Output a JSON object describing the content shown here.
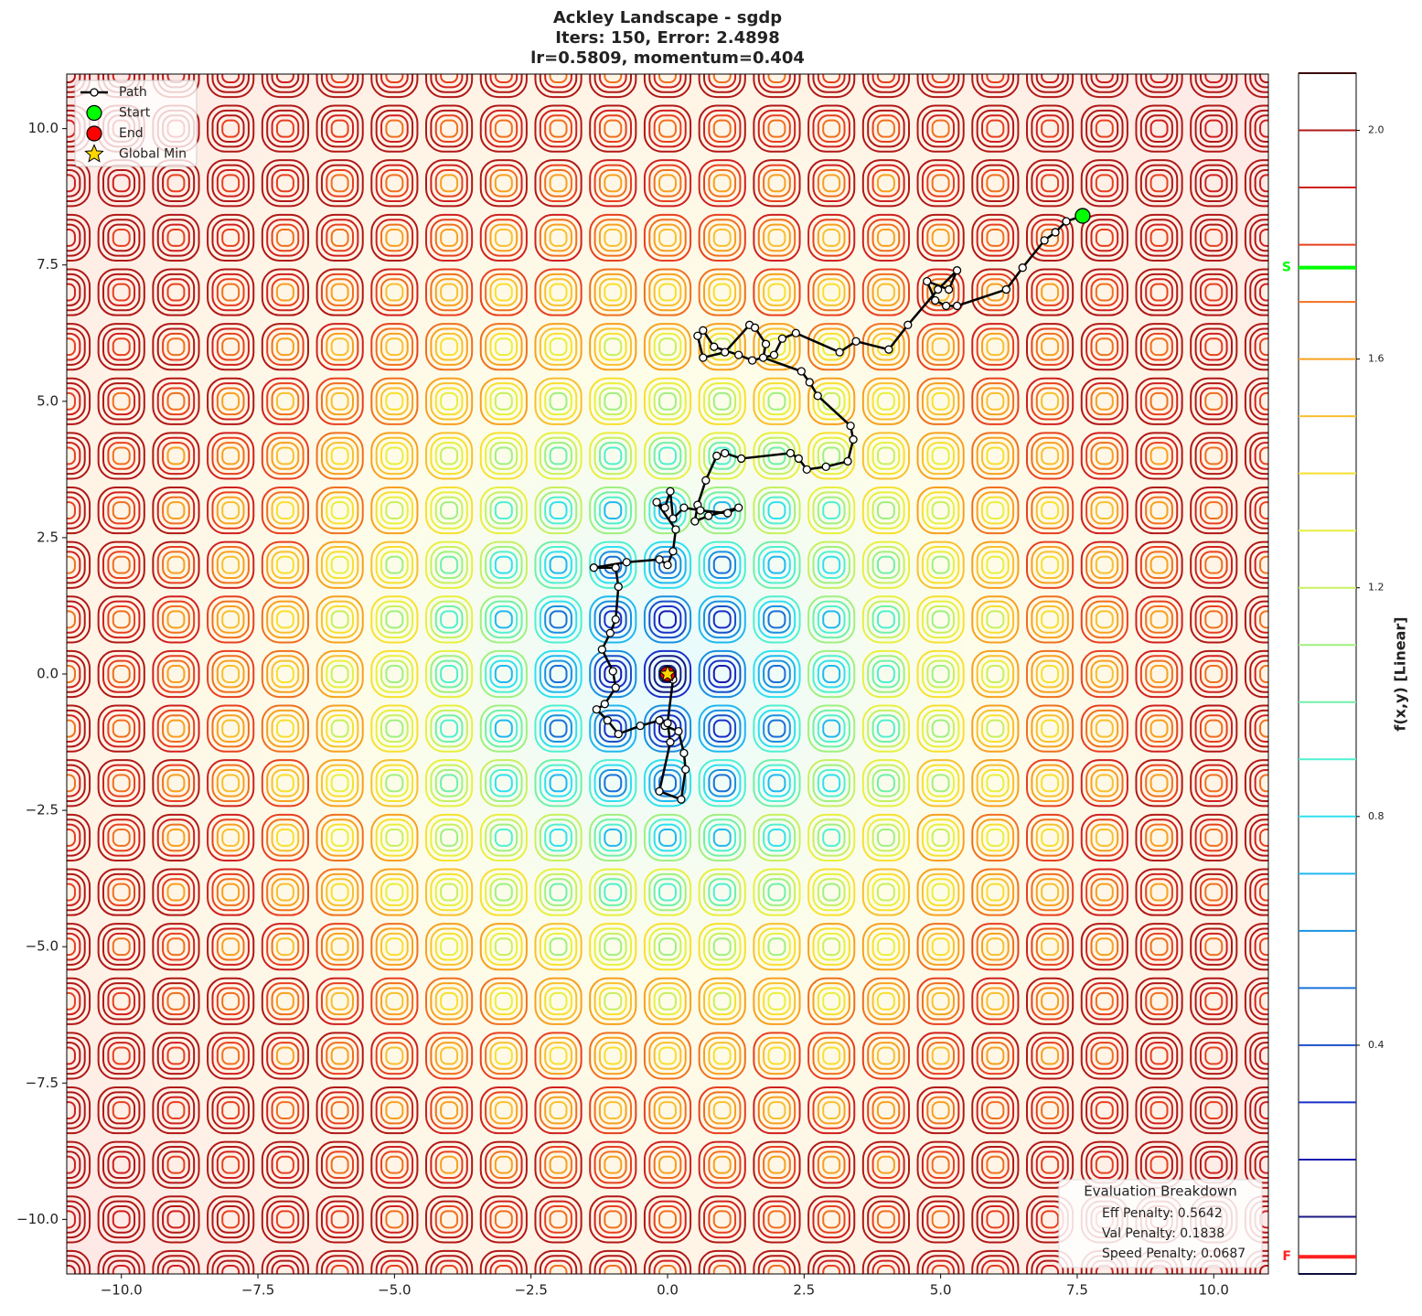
{
  "chart_data": {
    "type": "contour",
    "title": [
      "Ackley Landscape - sgdp",
      "Iters: 150, Error: 2.4898",
      "lr=0.5809, momentum=0.404"
    ],
    "xlim": [
      -11,
      11
    ],
    "ylim": [
      -11,
      11
    ],
    "xticks": [
      {
        "value": -10,
        "label": "−10.0"
      },
      {
        "value": -7.5,
        "label": "−7.5"
      },
      {
        "value": -5,
        "label": "−5.0"
      },
      {
        "value": -2.5,
        "label": "−2.5"
      },
      {
        "value": 0,
        "label": "0.0"
      },
      {
        "value": 2.5,
        "label": "2.5"
      },
      {
        "value": 5,
        "label": "5.0"
      },
      {
        "value": 7.5,
        "label": "7.5"
      },
      {
        "value": 10,
        "label": "10.0"
      }
    ],
    "yticks": [
      {
        "value": -10,
        "label": "−10.0"
      },
      {
        "value": -7.5,
        "label": "−7.5"
      },
      {
        "value": -5,
        "label": "−5.0"
      },
      {
        "value": -2.5,
        "label": "−2.5"
      },
      {
        "value": 0,
        "label": "0.0"
      },
      {
        "value": 2.5,
        "label": "2.5"
      },
      {
        "value": 5,
        "label": "5.0"
      },
      {
        "value": 7.5,
        "label": "7.5"
      },
      {
        "value": 10,
        "label": "10.0"
      }
    ],
    "path": {
      "name": "Path",
      "color": "#000000",
      "x": [
        7.6,
        7.3,
        7.1,
        6.9,
        6.5,
        6.2,
        5.3,
        5.1,
        4.9,
        4.75,
        5.15,
        5.3,
        4.95,
        4.4,
        4.05,
        3.45,
        3.15,
        2.35,
        2.1,
        1.95,
        1.55,
        1.3,
        0.85,
        0.65,
        0.55,
        0.65,
        1.05,
        1.5,
        1.6,
        1.8,
        1.75,
        2.45,
        2.6,
        2.75,
        3.35,
        3.4,
        3.3,
        2.9,
        2.55,
        2.4,
        2.25,
        1.35,
        1.05,
        0.9,
        0.7,
        0.55,
        0.5,
        0.75,
        1.3,
        1.1,
        0.6,
        0.3,
        0.1,
        0.05,
        -0.05,
        -0.2,
        0.15,
        0.1,
        0.0,
        -0.15,
        -0.75,
        -1.35,
        -0.95,
        -0.9,
        -0.95,
        -1.05,
        -1.2,
        -1.0,
        -0.95,
        -1.15,
        -1.3,
        -1.1,
        -0.9,
        -0.5,
        -0.15,
        -0.05,
        0.2,
        0.3,
        0.33,
        0.25,
        -0.15,
        0.05,
        0.0,
        0.1,
        0.0
      ],
      "y": [
        8.4,
        8.3,
        8.1,
        7.95,
        7.45,
        7.05,
        6.75,
        6.75,
        6.85,
        7.2,
        7.05,
        7.4,
        7.05,
        6.4,
        5.95,
        6.1,
        5.9,
        6.25,
        6.15,
        5.85,
        5.75,
        5.85,
        6.0,
        6.3,
        6.2,
        5.8,
        5.9,
        6.4,
        6.35,
        6.05,
        5.8,
        5.55,
        5.35,
        5.1,
        4.55,
        4.3,
        3.9,
        3.8,
        3.75,
        3.95,
        4.05,
        3.95,
        4.05,
        4.0,
        3.55,
        3.1,
        2.8,
        2.9,
        3.05,
        2.95,
        3.0,
        3.05,
        2.85,
        3.35,
        3.05,
        3.15,
        2.65,
        2.25,
        2.0,
        2.1,
        2.05,
        1.95,
        1.95,
        1.6,
        1.0,
        0.75,
        0.45,
        0.05,
        -0.25,
        -0.55,
        -0.65,
        -0.85,
        -1.1,
        -0.95,
        -0.85,
        -0.95,
        -1.05,
        -1.45,
        -1.75,
        -2.3,
        -2.15,
        -1.25,
        -0.9,
        -0.1,
        0.0
      ]
    },
    "start": {
      "name": "Start",
      "color": "#00ff00",
      "x": 7.6,
      "y": 8.4
    },
    "end": {
      "name": "End",
      "color": "#ff0000",
      "x": 0,
      "y": 0
    },
    "global_min": {
      "name": "Global Min",
      "color": "#ffd700",
      "x": 0,
      "y": 0
    },
    "legend": "upper left",
    "colorbar": {
      "label": "f(x,y) [Linear]",
      "lim": [
        0,
        2.1
      ],
      "ticks": [
        0.4,
        0.8,
        1.2,
        1.6,
        {
          "value": 2,
          "label": "2.0"
        }
      ],
      "levels": [
        0,
        0.1,
        0.2,
        0.3,
        0.4,
        0.5,
        0.6,
        0.7,
        0.8,
        0.9,
        1.0,
        1.1,
        1.2,
        1.3,
        1.4,
        1.5,
        1.6,
        1.7,
        1.8,
        1.9,
        2.0,
        2.1
      ],
      "level_colors": [
        "#0d0d3d",
        "#1a1a80",
        "#1a1ab0",
        "#1a30c8",
        "#1a50c8",
        "#1a70d8",
        "#1a90e0",
        "#20b8f0",
        "#30e0f0",
        "#50f0d0",
        "#70f0a8",
        "#a0f080",
        "#c8f060",
        "#e8f040",
        "#f8e030",
        "#f8c030",
        "#f8a020",
        "#f07020",
        "#e84020",
        "#d02020",
        "#b01818",
        "#3a0a0a"
      ],
      "markers": [
        {
          "label": "S",
          "value": 1.76,
          "color": "#00ff00"
        },
        {
          "label": "F",
          "value": 0.03,
          "color": "#ff2020"
        }
      ]
    },
    "annotation": {
      "title": "Evaluation Breakdown",
      "lines": [
        "Eff Penalty: 0.5642",
        "Val Penalty: 0.1838",
        "Speed Penalty: 0.0687"
      ]
    }
  }
}
